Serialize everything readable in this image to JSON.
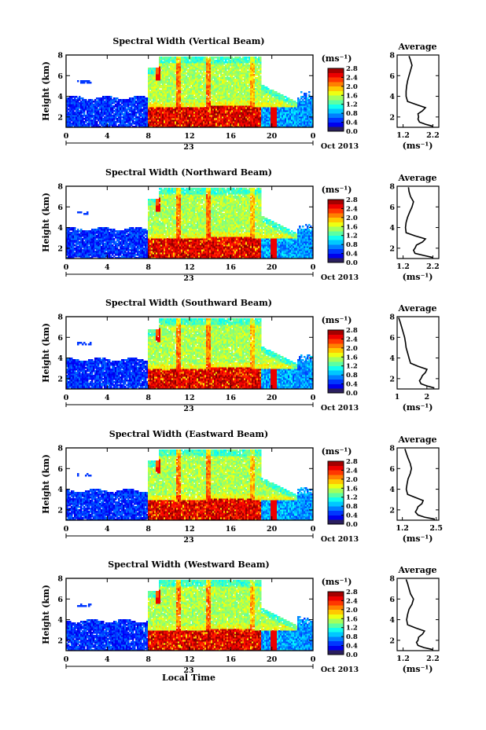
{
  "chart_data": [
    {
      "type": "heatmap",
      "title": "Spectral Width (Vertical Beam)",
      "xlabel": "",
      "ylabel": "Height (km)",
      "xlim": [
        0,
        24
      ],
      "ylim": [
        1,
        8
      ],
      "xticks": [
        "0",
        "4",
        "8",
        "12",
        "16",
        "20",
        "0"
      ],
      "yticks": [
        "2",
        "4",
        "6",
        "8"
      ],
      "date_marker": "23",
      "date_label": "Oct 2013",
      "colorbar": {
        "unit": "(ms⁻¹)",
        "ticks": [
          "0.0",
          "0.4",
          "0.8",
          "1.2",
          "1.6",
          "2.0",
          "2.4",
          "2.8"
        ],
        "range": [
          0,
          2.8
        ]
      },
      "average": {
        "title": "Average",
        "xlabel": "(ms⁻¹)",
        "xticks": [
          "1.2",
          "2.2"
        ],
        "xlim": [
          1.0,
          2.4
        ],
        "ylim": [
          1,
          8
        ],
        "heights": [
          1.1,
          1.3,
          1.5,
          1.8,
          2.0,
          2.3,
          2.6,
          2.9,
          3.2,
          3.5,
          4.0,
          4.5,
          5.0,
          5.5,
          6.0,
          6.5,
          7.0,
          7.5,
          7.9
        ],
        "values": [
          2.2,
          1.95,
          1.75,
          1.7,
          1.72,
          1.7,
          1.85,
          1.95,
          1.65,
          1.35,
          1.3,
          1.3,
          1.32,
          1.35,
          1.4,
          1.45,
          1.5,
          1.45,
          1.4
        ]
      }
    },
    {
      "type": "heatmap",
      "title": "Spectral Width (Northward Beam)",
      "xlabel": "",
      "ylabel": "Height (km)",
      "xlim": [
        0,
        24
      ],
      "ylim": [
        1,
        8
      ],
      "xticks": [
        "0",
        "4",
        "8",
        "12",
        "16",
        "20",
        "0"
      ],
      "yticks": [
        "2",
        "4",
        "6",
        "8"
      ],
      "date_marker": "23",
      "date_label": "Oct 2013",
      "colorbar": {
        "unit": "(ms⁻¹)",
        "ticks": [
          "0.0",
          "0.4",
          "0.8",
          "1.2",
          "1.6",
          "2.0",
          "2.4",
          "2.8"
        ],
        "range": [
          0,
          2.8
        ]
      },
      "average": {
        "title": "Average",
        "xlabel": "(ms⁻¹)",
        "xticks": [
          "1.2",
          "2.2"
        ],
        "xlim": [
          1.0,
          2.4
        ],
        "ylim": [
          1,
          8
        ],
        "heights": [
          1.1,
          1.3,
          1.5,
          1.8,
          2.0,
          2.3,
          2.6,
          2.9,
          3.2,
          3.5,
          4.0,
          4.5,
          5.0,
          5.5,
          6.0,
          6.5,
          7.0,
          7.5,
          7.9
        ],
        "values": [
          2.2,
          1.9,
          1.6,
          1.55,
          1.6,
          1.65,
          1.85,
          1.95,
          1.6,
          1.3,
          1.28,
          1.3,
          1.35,
          1.42,
          1.5,
          1.55,
          1.45,
          1.4,
          1.38
        ]
      }
    },
    {
      "type": "heatmap",
      "title": "Spectral Width (Southward Beam)",
      "xlabel": "",
      "ylabel": "Height (km)",
      "xlim": [
        0,
        24
      ],
      "ylim": [
        1,
        8
      ],
      "xticks": [
        "0",
        "4",
        "8",
        "12",
        "16",
        "20",
        "0"
      ],
      "yticks": [
        "2",
        "4",
        "6",
        "8"
      ],
      "date_marker": "23",
      "date_label": "Oct 2013",
      "colorbar": {
        "unit": "(ms⁻¹)",
        "ticks": [
          "0.0",
          "0.4",
          "0.8",
          "1.2",
          "1.6",
          "2.0",
          "2.4",
          "2.8"
        ],
        "range": [
          0,
          2.8
        ]
      },
      "average": {
        "title": "Average",
        "xlabel": "(ms⁻¹)",
        "xticks": [
          "1",
          "2"
        ],
        "xlim": [
          1.0,
          2.4
        ],
        "ylim": [
          1,
          8
        ],
        "heights": [
          1.1,
          1.3,
          1.5,
          1.8,
          2.0,
          2.3,
          2.6,
          2.9,
          3.2,
          3.5,
          4.0,
          4.5,
          5.0,
          5.5,
          6.0,
          6.5,
          7.0,
          7.5,
          7.9
        ],
        "values": [
          2.25,
          2.0,
          1.8,
          1.75,
          1.8,
          1.85,
          1.95,
          2.0,
          1.7,
          1.45,
          1.4,
          1.35,
          1.3,
          1.28,
          1.25,
          1.2,
          1.15,
          1.1,
          1.05
        ]
      }
    },
    {
      "type": "heatmap",
      "title": "Spectral Width (Eastward Beam)",
      "xlabel": "",
      "ylabel": "Height (km)",
      "xlim": [
        0,
        24
      ],
      "ylim": [
        1,
        8
      ],
      "xticks": [
        "0",
        "4",
        "8",
        "12",
        "16",
        "20",
        "0"
      ],
      "yticks": [
        "2",
        "4",
        "6",
        "8"
      ],
      "date_marker": "23",
      "date_label": "Oct 2013",
      "colorbar": {
        "unit": "(ms⁻¹)",
        "ticks": [
          "0.0",
          "0.4",
          "0.8",
          "1.2",
          "1.6",
          "2.0",
          "2.4",
          "2.8"
        ],
        "range": [
          0,
          2.8
        ]
      },
      "average": {
        "title": "Average",
        "xlabel": "(ms⁻¹)",
        "xticks": [
          "1.2",
          "2.5"
        ],
        "xlim": [
          1.0,
          2.6
        ],
        "ylim": [
          1,
          8
        ],
        "heights": [
          1.1,
          1.3,
          1.5,
          1.8,
          2.0,
          2.3,
          2.6,
          2.9,
          3.2,
          3.5,
          4.0,
          4.5,
          5.0,
          5.5,
          6.0,
          6.5,
          7.0,
          7.5,
          7.9
        ],
        "values": [
          2.45,
          2.05,
          1.8,
          1.7,
          1.75,
          1.8,
          1.95,
          2.0,
          1.7,
          1.4,
          1.35,
          1.38,
          1.42,
          1.5,
          1.55,
          1.5,
          1.42,
          1.35,
          1.3
        ]
      }
    },
    {
      "type": "heatmap",
      "title": "Spectral Width (Westward Beam)",
      "xlabel": "Local Time",
      "ylabel": "Height (km)",
      "xlim": [
        0,
        24
      ],
      "ylim": [
        1,
        8
      ],
      "xticks": [
        "0",
        "4",
        "8",
        "12",
        "16",
        "20",
        "0"
      ],
      "yticks": [
        "2",
        "4",
        "6",
        "8"
      ],
      "date_marker": "23",
      "date_label": "Oct 2013",
      "colorbar": {
        "unit": "(ms⁻¹)",
        "ticks": [
          "0.0",
          "0.4",
          "0.8",
          "1.2",
          "1.6",
          "2.0",
          "2.4",
          "2.8"
        ],
        "range": [
          0,
          2.8
        ]
      },
      "average": {
        "title": "Average",
        "xlabel": "(ms⁻¹)",
        "xticks": [
          "1.2",
          "2.2"
        ],
        "xlim": [
          1.0,
          2.4
        ],
        "ylim": [
          1,
          8
        ],
        "heights": [
          1.1,
          1.3,
          1.5,
          1.8,
          2.0,
          2.3,
          2.6,
          2.9,
          3.2,
          3.5,
          4.0,
          4.5,
          5.0,
          5.5,
          6.0,
          6.5,
          7.0,
          7.5,
          7.9
        ],
        "values": [
          2.2,
          1.9,
          1.7,
          1.65,
          1.7,
          1.72,
          1.85,
          1.92,
          1.62,
          1.35,
          1.32,
          1.35,
          1.4,
          1.5,
          1.55,
          1.45,
          1.4,
          1.35,
          1.3
        ]
      }
    }
  ]
}
